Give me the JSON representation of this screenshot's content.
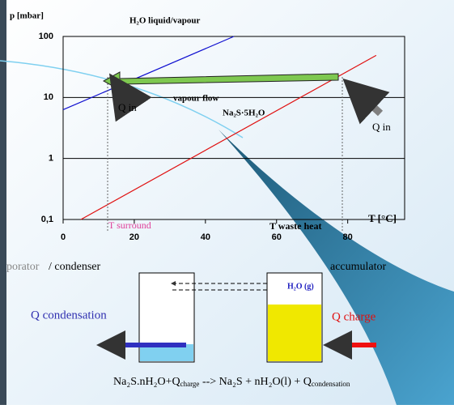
{
  "chart_data": {
    "type": "line",
    "y_label": "p [mbar]",
    "x_label": "T [°C]",
    "ylog": true,
    "xlim": [
      0,
      96
    ],
    "ylim": [
      0.1,
      100
    ],
    "xticks": [
      0,
      20,
      40,
      60,
      80
    ],
    "yticks": [
      {
        "value": 0.1,
        "label": "0,1"
      },
      1,
      10,
      100
    ],
    "grid": true,
    "series": [
      {
        "name": "H₂O liquid/vapour",
        "color": "#1010d0",
        "x": [
          0,
          48
        ],
        "values": [
          6.3,
          100
        ]
      },
      {
        "name": "Na₂S·5H₂O",
        "color": "#e01010",
        "x": [
          5,
          88
        ],
        "values": [
          0.1,
          49
        ]
      }
    ],
    "annotations": {
      "vapour_flow": "vapour flow",
      "q_in_left": "Q in",
      "q_in_right": "Q in",
      "t_surround": "T surround",
      "t_waste": "T waste heat"
    }
  },
  "diagram": {
    "evaporator": "porator",
    "condenser": "/ condenser",
    "accumulator": "accumulator",
    "vapour": "H₂O (g)",
    "q_condensation": "Q condensation",
    "q_charge": "Q charge",
    "equation": [
      "Na₂S.nH₂O+Q",
      "charge",
      " --> Na₂S + nH₂O(l) + Q",
      "condensation"
    ]
  }
}
